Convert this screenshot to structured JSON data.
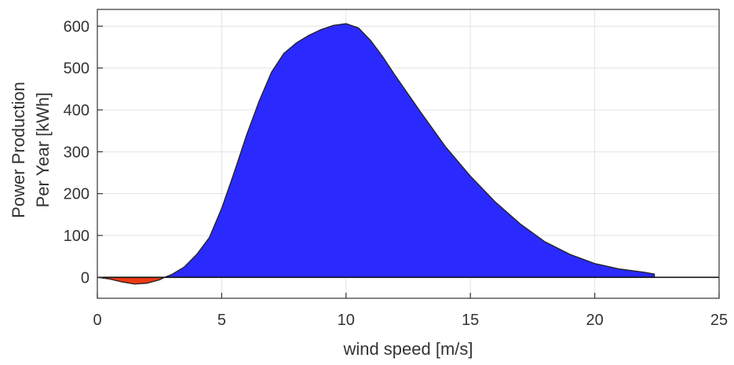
{
  "chart_data": {
    "type": "area",
    "title": "",
    "xlabel": "wind speed [m/s]",
    "ylabel_lines": [
      "Power Production",
      "Per Year [kWh]"
    ],
    "xlim": [
      0,
      25
    ],
    "ylim": [
      -50,
      640
    ],
    "x_ticks": [
      0,
      5,
      10,
      15,
      20,
      25
    ],
    "y_ticks": [
      0,
      100,
      200,
      300,
      400,
      500,
      600
    ],
    "grid": true,
    "series": [
      {
        "color": "#ed3a12",
        "x": [
          0,
          0.5,
          1.0,
          1.5,
          2.0,
          2.5,
          2.7
        ],
        "y": [
          0,
          -4,
          -11,
          -16,
          -14,
          -6,
          0
        ]
      },
      {
        "color": "#2a2aff",
        "x": [
          2.7,
          3.0,
          3.5,
          4.0,
          4.5,
          5.0,
          5.5,
          6.0,
          6.5,
          7.0,
          7.5,
          8.0,
          8.5,
          9.0,
          9.5,
          10.0,
          10.5,
          11.0,
          11.5,
          12.0,
          13.0,
          14.0,
          15.0,
          16.0,
          17.0,
          18.0,
          19.0,
          20.0,
          21.0,
          22.0,
          22.4
        ],
        "y": [
          0,
          7,
          25,
          55,
          95,
          165,
          250,
          340,
          420,
          490,
          535,
          560,
          578,
          592,
          602,
          606,
          596,
          565,
          525,
          480,
          395,
          312,
          242,
          180,
          128,
          85,
          55,
          33,
          20,
          12,
          8
        ]
      }
    ],
    "baseline_x": [
      22.4,
      25
    ],
    "baseline_y": [
      0,
      0
    ]
  }
}
